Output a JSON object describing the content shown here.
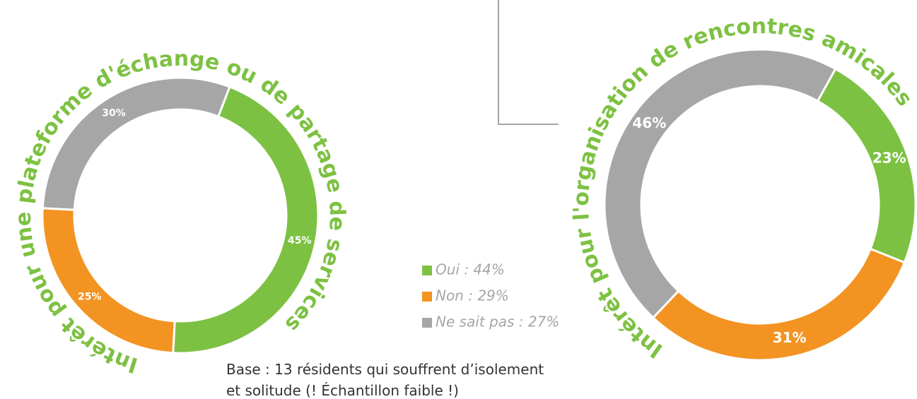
{
  "chart_data": [
    {
      "type": "pie",
      "title": "Intérêt pour une plateforme d'échange ou de partage de services",
      "values": [
        45,
        25,
        30
      ],
      "value_labels": [
        "45%",
        "25%",
        "30%"
      ],
      "colors": [
        "#7dc142",
        "#f39322",
        "#a6a6a6"
      ]
    },
    {
      "type": "pie",
      "title": "Intérêt pour l'organisation de rencontres amicales",
      "values": [
        23,
        31,
        46
      ],
      "value_labels": [
        "23%",
        "31%",
        "46%"
      ],
      "colors": [
        "#7dc142",
        "#f39322",
        "#a6a6a6"
      ]
    }
  ],
  "legend": [
    {
      "label": "Oui : 44%",
      "color": "#7dc142"
    },
    {
      "label": "Non : 29%",
      "color": "#f39322"
    },
    {
      "label": "Ne sait pas : 27%",
      "color": "#a6a6a6"
    }
  ],
  "note": [
    "Base : 13 résidents qui souffrent d’isolement",
    "et solitude (! Échantillon faible !)"
  ]
}
